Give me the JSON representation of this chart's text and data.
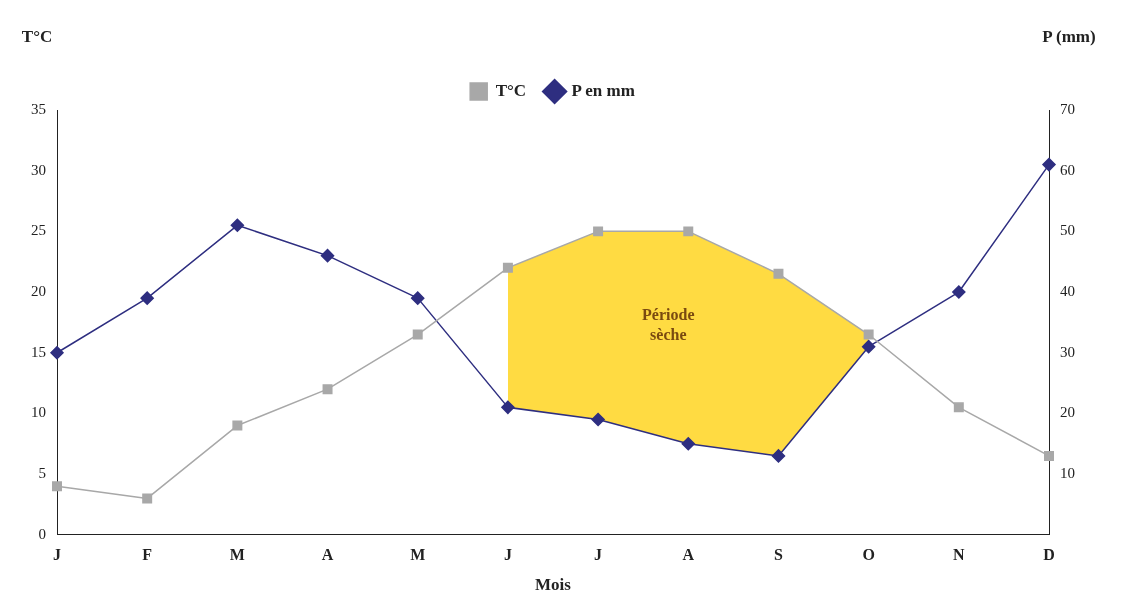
{
  "chart_data": {
    "type": "line",
    "xlabel": "Mois",
    "ylabel": "T°C",
    "y2label": "P (mm)",
    "categories": [
      "J",
      "F",
      "M",
      "A",
      "M",
      "J",
      "J",
      "A",
      "S",
      "O",
      "N",
      "D"
    ],
    "series": [
      {
        "name": "T°C",
        "color": "#a8a8a8",
        "marker": "square",
        "values": [
          4,
          3,
          9,
          12,
          16.5,
          22,
          25,
          25,
          21.5,
          16.5,
          10.5,
          6.5
        ],
        "lower": [
          null,
          null,
          null,
          null,
          null,
          10.5,
          9.5,
          7.5,
          6.5,
          15.5,
          null,
          null
        ],
        "upper": [
          null,
          null,
          null,
          null,
          null,
          22,
          25,
          25,
          21.5,
          16.5,
          null,
          null
        ]
      },
      {
        "name": "P en mm",
        "color": "#2e2e80",
        "marker": "diamond",
        "axis": "y2",
        "values": [
          30,
          39,
          51,
          46,
          39,
          21,
          19,
          15,
          13,
          31,
          40,
          61
        ]
      }
    ],
    "ylim": [
      0,
      35
    ],
    "yticks": [
      0,
      5,
      10,
      15,
      20,
      25,
      30,
      35
    ],
    "y2lim": [
      0,
      70
    ],
    "y2ticks": [
      10,
      20,
      30,
      40,
      50,
      60,
      70
    ],
    "annotations": [
      "Période sèche"
    ],
    "legend": "top",
    "grid": false
  }
}
